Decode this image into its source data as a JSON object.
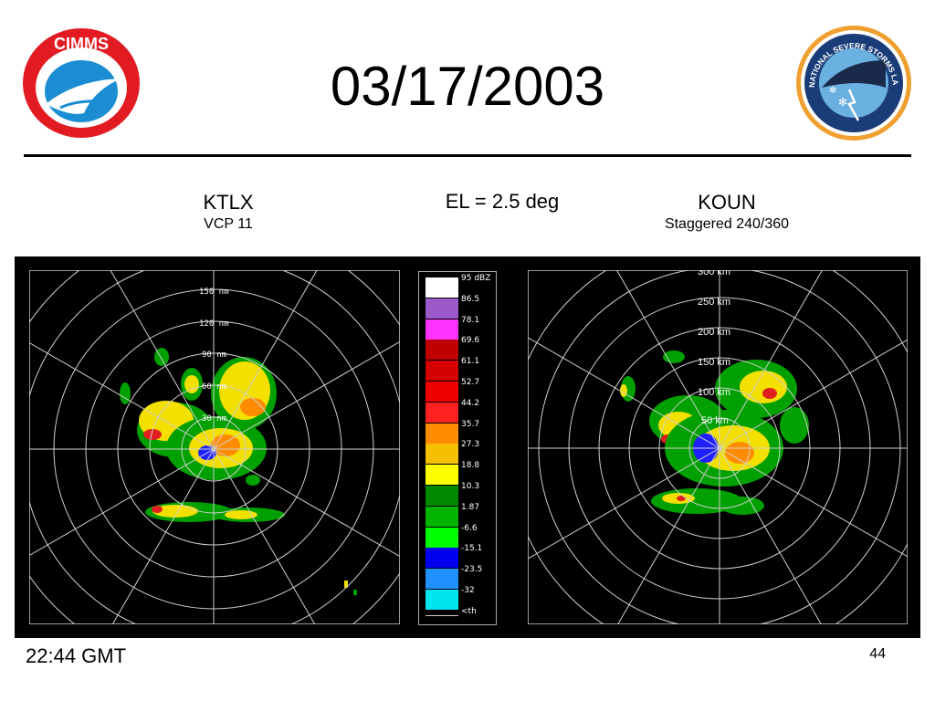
{
  "title": "03/17/2003",
  "left_site": {
    "name": "KTLX",
    "mode": "VCP 11"
  },
  "elevation": "EL = 2.5 deg",
  "right_site": {
    "name": "KOUN",
    "mode": "Staggered 240/360"
  },
  "footer_time": "22:44 GMT",
  "page_number": "44",
  "logos": {
    "left": "CIMMS",
    "right_text": "NATIONAL SEVERE STORMS LABORATORY"
  },
  "left_range_labels": [
    "150 nm",
    "120 nm",
    "90 nm",
    "60 nm",
    "30 nm"
  ],
  "right_range_labels": [
    "300 km",
    "250 km",
    "200 km",
    "150 km",
    "100 km",
    "50 km"
  ],
  "scale_unit": "dBZ",
  "scale": [
    {
      "label": "95 dBZ",
      "color": "#ffffff"
    },
    {
      "label": "86.5",
      "color": "#9b59c9"
    },
    {
      "label": "78.1",
      "color": "#ff33ff"
    },
    {
      "label": "69.6",
      "color": "#c00000"
    },
    {
      "label": "61.1",
      "color": "#d40000"
    },
    {
      "label": "52.7",
      "color": "#ee0000"
    },
    {
      "label": "44.2",
      "color": "#ff2020"
    },
    {
      "label": "35.7",
      "color": "#ff8c00"
    },
    {
      "label": "27.3",
      "color": "#f4c000"
    },
    {
      "label": "18.8",
      "color": "#ffff00"
    },
    {
      "label": "10.3",
      "color": "#008a00"
    },
    {
      "label": "1.87",
      "color": "#00b400"
    },
    {
      "label": "-6.6",
      "color": "#00ff00"
    },
    {
      "label": "-15.1",
      "color": "#0000ee"
    },
    {
      "label": "-23.5",
      "color": "#1e90ff"
    },
    {
      "label": "-32",
      "color": "#00e5ee"
    },
    {
      "label": "<th",
      "color": "#000000"
    }
  ]
}
